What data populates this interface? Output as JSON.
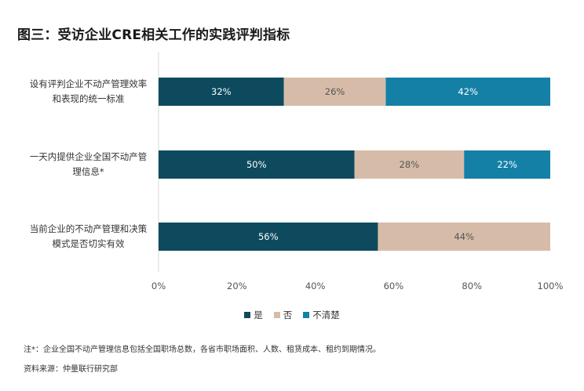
{
  "title": "图三：受访企业CRE相关工作的实践评判指标",
  "chart_data": {
    "type": "bar",
    "orientation": "horizontal",
    "stacked": true,
    "categories": [
      [
        "设有评判企业不动产管理效率",
        "和表现的统一标准"
      ],
      [
        "一天内提供企业全国不动产管",
        "理信息*"
      ],
      [
        "当前企业的不动产管理和决策",
        "模式是否切实有效"
      ]
    ],
    "series": [
      {
        "name": "是",
        "color": "#0e4a5e",
        "values": [
          32,
          50,
          56
        ],
        "labels": [
          "32%",
          "50%",
          "56%"
        ]
      },
      {
        "name": "否",
        "color": "#d6bca8",
        "values": [
          26,
          28,
          44
        ],
        "labels": [
          "26%",
          "28%",
          "44%"
        ]
      },
      {
        "name": "不清楚",
        "color": "#1480a6",
        "values": [
          42,
          22,
          0
        ],
        "labels": [
          "42%",
          "22%",
          ""
        ]
      }
    ],
    "xlim": [
      0,
      100
    ],
    "xticks": [
      "0%",
      "20%",
      "40%",
      "60%",
      "80%",
      "100%"
    ],
    "grid": false,
    "legend": "bottom"
  },
  "footnote": "注*：企业全国不动产管理信息包括全国职场总数，各省市职场面积、人数、租赁成本、租约到期情况。",
  "source": "资料来源：仲量联行研究部"
}
